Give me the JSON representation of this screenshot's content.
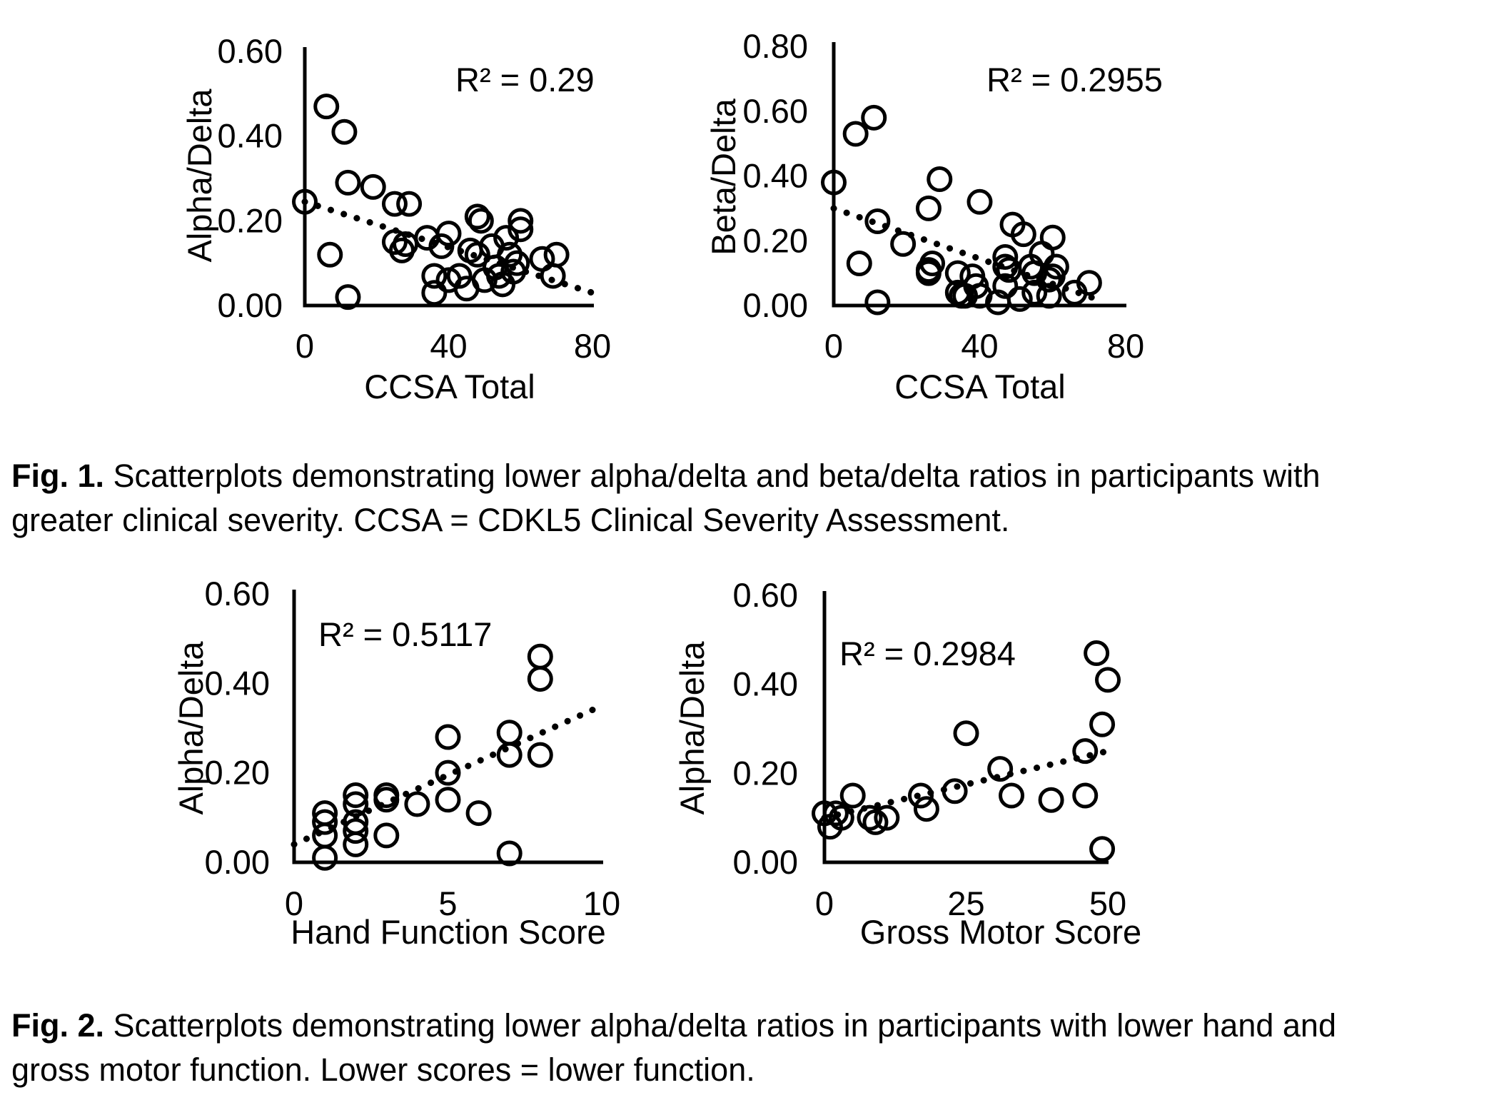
{
  "figure": {
    "colors": {
      "background": "#ffffff",
      "foreground": "#000000"
    },
    "captions": [
      {
        "prefix": "Fig. 1.",
        "rest1": " Scatterplots demonstrating lower alpha/delta and beta/delta ratios in participants with",
        "line2": "greater clinical severity. CCSA = CDKL5 Clinical Severity Assessment."
      },
      {
        "prefix": "Fig. 2.",
        "rest1": " Scatterplots demonstrating lower alpha/delta ratios in participants with lower hand and",
        "line2": "gross motor function. Lower scores = lower function."
      }
    ]
  },
  "chart_data": [
    {
      "type": "scatter",
      "name": "alpha-delta-vs-ccsa-total",
      "title": "",
      "xlabel": "CCSA Total",
      "ylabel": "Alpha/Delta",
      "r2_label": "R² = 0.29",
      "r2_value": 0.29,
      "xlim": [
        0,
        80
      ],
      "ylim": [
        0,
        0.6
      ],
      "xticks": [
        0,
        40,
        80
      ],
      "xtick_labels": [
        "0",
        "40",
        "80"
      ],
      "yticks": [
        0,
        0.2,
        0.4,
        0.6
      ],
      "ytick_labels": [
        "0.00",
        "0.20",
        "0.40",
        "0.60"
      ],
      "grid": false,
      "legend": null,
      "marker": "open-circle",
      "trendline_style": "dotted",
      "trendline": {
        "x1": 0,
        "y1": 0.245,
        "x2": 80,
        "y2": 0.03
      },
      "points": [
        [
          0,
          0.245
        ],
        [
          6,
          0.47
        ],
        [
          11,
          0.41
        ],
        [
          12,
          0.29
        ],
        [
          19,
          0.28
        ],
        [
          25,
          0.24
        ],
        [
          29,
          0.24
        ],
        [
          7,
          0.12
        ],
        [
          12,
          0.02
        ],
        [
          25,
          0.15
        ],
        [
          27,
          0.13
        ],
        [
          28,
          0.145
        ],
        [
          34,
          0.16
        ],
        [
          38,
          0.14
        ],
        [
          40,
          0.17
        ],
        [
          36,
          0.07
        ],
        [
          36,
          0.03
        ],
        [
          40,
          0.06
        ],
        [
          43,
          0.07
        ],
        [
          45,
          0.04
        ],
        [
          46,
          0.13
        ],
        [
          48,
          0.12
        ],
        [
          48,
          0.21
        ],
        [
          49,
          0.2
        ],
        [
          50,
          0.06
        ],
        [
          52,
          0.14
        ],
        [
          53,
          0.09
        ],
        [
          54,
          0.07
        ],
        [
          55,
          0.05
        ],
        [
          56,
          0.16
        ],
        [
          57,
          0.12
        ],
        [
          58,
          0.08
        ],
        [
          59,
          0.1
        ],
        [
          60,
          0.2
        ],
        [
          60,
          0.18
        ],
        [
          66,
          0.11
        ],
        [
          69,
          0.07
        ],
        [
          70,
          0.12
        ]
      ]
    },
    {
      "type": "scatter",
      "name": "beta-delta-vs-ccsa-total",
      "title": "",
      "xlabel": "CCSA Total",
      "ylabel": "Beta/Delta",
      "r2_label": "R² = 0.2955",
      "r2_value": 0.2955,
      "xlim": [
        0,
        80
      ],
      "ylim": [
        0,
        0.8
      ],
      "xticks": [
        0,
        40,
        80
      ],
      "xtick_labels": [
        "0",
        "40",
        "80"
      ],
      "yticks": [
        0,
        0.2,
        0.4,
        0.6,
        0.8
      ],
      "ytick_labels": [
        "0.00",
        "0.20",
        "0.40",
        "0.60",
        "0.80"
      ],
      "grid": false,
      "legend": null,
      "marker": "open-circle",
      "trendline_style": "dotted",
      "trendline": {
        "x1": 0,
        "y1": 0.3,
        "x2": 72,
        "y2": 0.02
      },
      "points": [
        [
          0,
          0.38
        ],
        [
          6,
          0.53
        ],
        [
          11,
          0.58
        ],
        [
          12,
          0.26
        ],
        [
          19,
          0.19
        ],
        [
          7,
          0.13
        ],
        [
          12,
          0.01
        ],
        [
          26,
          0.3
        ],
        [
          29,
          0.39
        ],
        [
          26,
          0.11
        ],
        [
          27,
          0.13
        ],
        [
          26,
          0.1
        ],
        [
          34,
          0.1
        ],
        [
          34,
          0.04
        ],
        [
          35,
          0.03
        ],
        [
          40,
          0.32
        ],
        [
          49,
          0.25
        ],
        [
          52,
          0.22
        ],
        [
          60,
          0.21
        ],
        [
          57,
          0.16
        ],
        [
          47,
          0.15
        ],
        [
          47,
          0.12
        ],
        [
          48,
          0.11
        ],
        [
          54,
          0.12
        ],
        [
          55,
          0.1
        ],
        [
          61,
          0.12
        ],
        [
          60,
          0.09
        ],
        [
          38,
          0.09
        ],
        [
          39,
          0.06
        ],
        [
          36,
          0.03
        ],
        [
          40,
          0.03
        ],
        [
          45,
          0.01
        ],
        [
          51,
          0.02
        ],
        [
          47,
          0.06
        ],
        [
          55,
          0.04
        ],
        [
          59,
          0.03
        ],
        [
          59,
          0.08
        ],
        [
          66,
          0.04
        ],
        [
          70,
          0.07
        ]
      ]
    },
    {
      "type": "scatter",
      "name": "alpha-delta-vs-hand-function",
      "title": "",
      "xlabel": "Hand Function Score",
      "ylabel": "Alpha/Delta",
      "r2_label": "R² = 0.5117",
      "r2_value": 0.5117,
      "xlim": [
        0,
        10
      ],
      "ylim": [
        0,
        0.6
      ],
      "xticks": [
        0,
        5,
        10
      ],
      "xtick_labels": [
        "0",
        "5",
        "10"
      ],
      "yticks": [
        0,
        0.2,
        0.4,
        0.6
      ],
      "ytick_labels": [
        "0.00",
        "0.20",
        "0.40",
        "0.60"
      ],
      "grid": false,
      "legend": null,
      "marker": "open-circle",
      "trendline_style": "dotted",
      "trendline": {
        "x1": 0,
        "y1": 0.04,
        "x2": 10,
        "y2": 0.35
      },
      "points": [
        [
          1,
          0.11
        ],
        [
          1,
          0.09
        ],
        [
          1,
          0.06
        ],
        [
          1,
          0.01
        ],
        [
          2,
          0.15
        ],
        [
          2,
          0.13
        ],
        [
          2,
          0.09
        ],
        [
          2,
          0.07
        ],
        [
          2,
          0.04
        ],
        [
          3,
          0.15
        ],
        [
          3,
          0.14
        ],
        [
          3,
          0.06
        ],
        [
          4,
          0.13
        ],
        [
          5,
          0.28
        ],
        [
          5,
          0.2
        ],
        [
          5,
          0.14
        ],
        [
          6,
          0.11
        ],
        [
          7,
          0.29
        ],
        [
          7,
          0.24
        ],
        [
          7,
          0.02
        ],
        [
          8,
          0.46
        ],
        [
          8,
          0.41
        ],
        [
          8,
          0.24
        ]
      ]
    },
    {
      "type": "scatter",
      "name": "alpha-delta-vs-gross-motor",
      "title": "",
      "xlabel": "Gross Motor Score",
      "ylabel": "Alpha/Delta",
      "r2_label": "R² = 0.2984",
      "r2_value": 0.2984,
      "xlim": [
        0,
        50
      ],
      "ylim": [
        0,
        0.6
      ],
      "xticks": [
        0,
        25,
        50
      ],
      "xtick_labels": [
        "0",
        "25",
        "50"
      ],
      "yticks": [
        0,
        0.2,
        0.4,
        0.6
      ],
      "ytick_labels": [
        "0.00",
        "0.20",
        "0.40",
        "0.60"
      ],
      "grid": false,
      "legend": null,
      "marker": "open-circle",
      "trendline_style": "dotted",
      "trendline": {
        "x1": 0,
        "y1": 0.1,
        "x2": 50,
        "y2": 0.25
      },
      "points": [
        [
          0,
          0.11
        ],
        [
          1,
          0.08
        ],
        [
          2,
          0.11
        ],
        [
          3,
          0.1
        ],
        [
          5,
          0.15
        ],
        [
          8,
          0.1
        ],
        [
          9,
          0.09
        ],
        [
          11,
          0.1
        ],
        [
          17,
          0.15
        ],
        [
          18,
          0.12
        ],
        [
          23,
          0.16
        ],
        [
          25,
          0.29
        ],
        [
          31,
          0.21
        ],
        [
          33,
          0.15
        ],
        [
          40,
          0.14
        ],
        [
          46,
          0.15
        ],
        [
          46,
          0.25
        ],
        [
          48,
          0.47
        ],
        [
          49,
          0.31
        ],
        [
          50,
          0.41
        ],
        [
          49,
          0.03
        ]
      ]
    }
  ]
}
